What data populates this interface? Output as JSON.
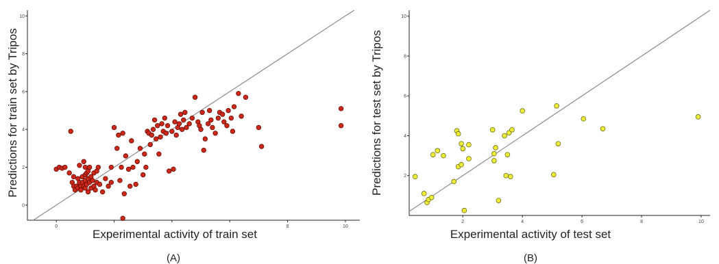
{
  "colors": {
    "train_point": "#c9281a",
    "train_edge": "#6a0d05",
    "test_point": "#eeee3a",
    "test_edge": "#6b6b12",
    "ideal_line": "#8a8a8a"
  },
  "chart_data": [
    {
      "type": "scatter",
      "panel_label": "(A)",
      "xlabel": "Experimental activity of train set",
      "ylabel": "Predictions for train set by Tripos",
      "xlim": [
        -1,
        10.5
      ],
      "ylim": [
        -0.8,
        10.3
      ],
      "xticks": [
        0,
        2,
        4,
        6,
        8,
        10
      ],
      "xtick_labels": [
        "0",
        "",
        "",
        "",
        "8",
        "10"
      ],
      "yticks": [
        0,
        2,
        4,
        6,
        8,
        10
      ],
      "ytick_labels": [
        "0",
        "2",
        "4",
        "6",
        "8",
        "10"
      ],
      "reference_line": "y = x",
      "grid": false,
      "series": [
        {
          "points": [
            [
              0.0,
              1.9
            ],
            [
              0.1,
              2.0
            ],
            [
              0.2,
              1.95
            ],
            [
              0.3,
              2.0
            ],
            [
              0.45,
              1.7
            ],
            [
              0.5,
              3.9
            ],
            [
              0.55,
              1.2
            ],
            [
              0.6,
              1.5
            ],
            [
              0.6,
              1.0
            ],
            [
              0.65,
              0.8
            ],
            [
              0.7,
              1.0
            ],
            [
              0.75,
              1.4
            ],
            [
              0.75,
              0.9
            ],
            [
              0.8,
              1.2
            ],
            [
              0.8,
              2.1
            ],
            [
              0.85,
              1.0
            ],
            [
              0.85,
              0.8
            ],
            [
              0.9,
              1.2
            ],
            [
              0.9,
              1.5
            ],
            [
              0.95,
              1.0
            ],
            [
              0.95,
              2.3
            ],
            [
              1.0,
              0.9
            ],
            [
              1.0,
              1.3
            ],
            [
              1.0,
              1.6
            ],
            [
              1.0,
              2.0
            ],
            [
              1.05,
              1.1
            ],
            [
              1.05,
              1.7
            ],
            [
              1.1,
              1.8
            ],
            [
              1.1,
              1.4
            ],
            [
              1.1,
              0.7
            ],
            [
              1.15,
              1.2
            ],
            [
              1.15,
              2.0
            ],
            [
              1.2,
              1.5
            ],
            [
              1.2,
              0.9
            ],
            [
              1.25,
              1.3
            ],
            [
              1.3,
              1.0
            ],
            [
              1.3,
              1.7
            ],
            [
              1.35,
              0.8
            ],
            [
              1.4,
              1.2
            ],
            [
              1.4,
              1.8
            ],
            [
              1.45,
              2.0
            ],
            [
              1.5,
              1.1
            ],
            [
              1.6,
              0.7
            ],
            [
              1.7,
              1.4
            ],
            [
              1.8,
              1.0
            ],
            [
              1.9,
              2.0
            ],
            [
              1.9,
              1.2
            ],
            [
              2.0,
              4.1
            ],
            [
              2.1,
              3.0
            ],
            [
              2.15,
              3.7
            ],
            [
              2.2,
              1.3
            ],
            [
              2.25,
              2.0
            ],
            [
              2.3,
              3.8
            ],
            [
              2.35,
              0.6
            ],
            [
              2.4,
              2.6
            ],
            [
              2.5,
              1.9
            ],
            [
              2.55,
              1.0
            ],
            [
              2.6,
              3.4
            ],
            [
              2.65,
              2.0
            ],
            [
              2.75,
              1.1
            ],
            [
              2.8,
              2.3
            ],
            [
              2.9,
              3.0
            ],
            [
              3.0,
              1.6
            ],
            [
              3.05,
              2.7
            ],
            [
              3.1,
              2.0
            ],
            [
              3.15,
              3.9
            ],
            [
              3.2,
              3.8
            ],
            [
              3.25,
              3.2
            ],
            [
              3.3,
              3.7
            ],
            [
              3.35,
              4.0
            ],
            [
              3.4,
              4.5
            ],
            [
              3.45,
              3.5
            ],
            [
              3.5,
              4.2
            ],
            [
              3.55,
              2.7
            ],
            [
              3.6,
              3.6
            ],
            [
              3.65,
              4.3
            ],
            [
              3.7,
              3.9
            ],
            [
              3.75,
              4.6
            ],
            [
              3.8,
              3.8
            ],
            [
              3.85,
              4.2
            ],
            [
              3.9,
              1.8
            ],
            [
              4.0,
              3.9
            ],
            [
              4.05,
              1.9
            ],
            [
              4.1,
              4.4
            ],
            [
              4.15,
              3.7
            ],
            [
              4.2,
              4.1
            ],
            [
              4.25,
              4.3
            ],
            [
              4.3,
              4.8
            ],
            [
              4.35,
              4.0
            ],
            [
              4.4,
              4.5
            ],
            [
              4.45,
              4.9
            ],
            [
              4.5,
              4.1
            ],
            [
              4.6,
              4.3
            ],
            [
              4.7,
              4.6
            ],
            [
              4.8,
              5.7
            ],
            [
              4.9,
              4.4
            ],
            [
              4.95,
              4.2
            ],
            [
              5.0,
              4.0
            ],
            [
              5.05,
              4.9
            ],
            [
              5.1,
              2.9
            ],
            [
              5.15,
              3.5
            ],
            [
              5.25,
              4.3
            ],
            [
              5.3,
              5.0
            ],
            [
              5.35,
              4.5
            ],
            [
              5.4,
              4.1
            ],
            [
              5.5,
              3.8
            ],
            [
              5.6,
              4.6
            ],
            [
              5.65,
              4.9
            ],
            [
              5.75,
              4.8
            ],
            [
              5.8,
              4.4
            ],
            [
              5.9,
              4.2
            ],
            [
              5.95,
              5.0
            ],
            [
              6.05,
              4.6
            ],
            [
              6.1,
              3.9
            ],
            [
              6.15,
              5.2
            ],
            [
              6.3,
              5.9
            ],
            [
              6.4,
              4.7
            ],
            [
              6.55,
              5.7
            ],
            [
              7.0,
              4.1
            ],
            [
              7.1,
              3.1
            ],
            [
              9.85,
              5.1
            ],
            [
              9.85,
              4.2
            ],
            [
              2.3,
              -0.7
            ]
          ]
        }
      ]
    },
    {
      "type": "scatter",
      "panel_label": "(B)",
      "xlabel": "Experimental activity of test set",
      "ylabel": "Predictions for test set by Tripos",
      "xlim": [
        0.2,
        10.3
      ],
      "ylim": [
        0,
        10.3
      ],
      "xticks": [
        2,
        4,
        6,
        8,
        10
      ],
      "xtick_labels": [
        "2",
        "4",
        "6",
        "8",
        "10"
      ],
      "yticks": [
        2,
        4,
        6,
        8,
        10
      ],
      "ytick_labels": [
        "2",
        "4",
        "6",
        "8",
        "10"
      ],
      "reference_line": "y = x",
      "grid": false,
      "series": [
        {
          "points": [
            [
              0.4,
              1.95
            ],
            [
              0.7,
              1.1
            ],
            [
              0.8,
              0.65
            ],
            [
              0.85,
              0.8
            ],
            [
              0.95,
              0.9
            ],
            [
              1.0,
              3.05
            ],
            [
              1.15,
              3.25
            ],
            [
              1.35,
              3.0
            ],
            [
              1.7,
              1.7
            ],
            [
              1.8,
              4.25
            ],
            [
              1.85,
              4.1
            ],
            [
              1.85,
              2.45
            ],
            [
              1.95,
              3.6
            ],
            [
              1.95,
              2.55
            ],
            [
              2.0,
              3.35
            ],
            [
              2.05,
              0.25
            ],
            [
              2.2,
              2.85
            ],
            [
              2.2,
              3.55
            ],
            [
              3.0,
              4.3
            ],
            [
              3.05,
              3.1
            ],
            [
              3.05,
              2.75
            ],
            [
              3.1,
              3.4
            ],
            [
              3.2,
              0.75
            ],
            [
              3.4,
              4.0
            ],
            [
              3.45,
              2.0
            ],
            [
              3.5,
              3.05
            ],
            [
              3.55,
              4.15
            ],
            [
              3.6,
              1.95
            ],
            [
              3.65,
              4.3
            ],
            [
              4.0,
              5.25
            ],
            [
              5.05,
              2.05
            ],
            [
              5.15,
              5.5
            ],
            [
              5.2,
              3.6
            ],
            [
              6.05,
              4.85
            ],
            [
              6.7,
              4.35
            ],
            [
              9.9,
              4.95
            ]
          ]
        }
      ]
    }
  ]
}
